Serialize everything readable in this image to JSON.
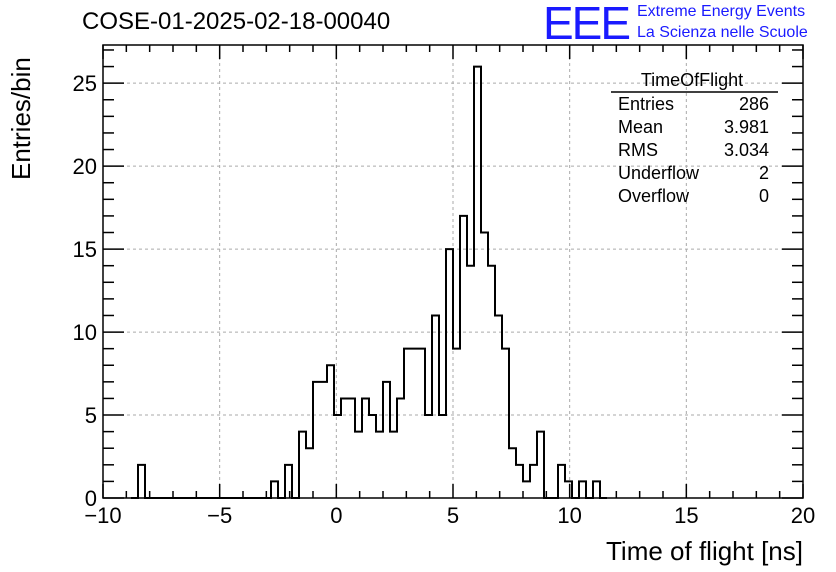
{
  "header": {
    "run_title": "COSE-01-2025-02-18-00040",
    "logo_text": "EEE",
    "logo_line1": "Extreme Energy Events",
    "logo_line2": "La Scienza nelle Scuole",
    "logo_color": "#1a1aff"
  },
  "stats_box": {
    "title": "TimeOfFlight",
    "rows": [
      {
        "label": "Entries",
        "value": "286"
      },
      {
        "label": "Mean",
        "value": "3.981"
      },
      {
        "label": "RMS",
        "value": "3.034"
      },
      {
        "label": "Underflow",
        "value": "2"
      },
      {
        "label": "Overflow",
        "value": "0"
      }
    ]
  },
  "chart_data": {
    "type": "bar",
    "histogram": true,
    "xlabel": "Time of flight [ns]",
    "ylabel": "Entries/bin",
    "xlim": [
      -10,
      20
    ],
    "ylim": [
      0,
      27.3
    ],
    "bin_width": 0.3,
    "x_ticks": [
      -10,
      -5,
      0,
      5,
      10,
      15,
      20
    ],
    "x_tick_labels": [
      "−10",
      "−5",
      "0",
      "5",
      "10",
      "15",
      "20"
    ],
    "y_ticks": [
      0,
      5,
      10,
      15,
      20,
      25
    ],
    "grid": true,
    "bins": [
      {
        "x0": -8.5,
        "y": 2
      },
      {
        "x0": -6.3,
        "y": 1
      },
      {
        "x0": -2.8,
        "y": 1
      },
      {
        "x0": -2.2,
        "y": 2
      },
      {
        "x0": -1.6,
        "y": 4
      },
      {
        "x0": -1.3,
        "y": 3
      },
      {
        "x0": -1.0,
        "y": 7
      },
      {
        "x0": -0.7,
        "y": 7
      },
      {
        "x0": -0.4,
        "y": 8
      },
      {
        "x0": -0.1,
        "y": 5
      },
      {
        "x0": 0.2,
        "y": 6
      },
      {
        "x0": 0.5,
        "y": 6
      },
      {
        "x0": 0.8,
        "y": 4
      },
      {
        "x0": 1.1,
        "y": 6
      },
      {
        "x0": 1.4,
        "y": 5
      },
      {
        "x0": 1.7,
        "y": 4
      },
      {
        "x0": 2.0,
        "y": 7
      },
      {
        "x0": 2.3,
        "y": 4
      },
      {
        "x0": 2.6,
        "y": 6
      },
      {
        "x0": 2.9,
        "y": 9
      },
      {
        "x0": 3.2,
        "y": 9
      },
      {
        "x0": 3.5,
        "y": 9
      },
      {
        "x0": 3.8,
        "y": 5
      },
      {
        "x0": 4.1,
        "y": 11
      },
      {
        "x0": 4.4,
        "y": 5
      },
      {
        "x0": 4.7,
        "y": 15
      },
      {
        "x0": 5.0,
        "y": 9
      },
      {
        "x0": 5.3,
        "y": 17
      },
      {
        "x0": 5.6,
        "y": 14
      },
      {
        "x0": 5.9,
        "y": 26
      },
      {
        "x0": 6.2,
        "y": 16
      },
      {
        "x0": 6.5,
        "y": 14
      },
      {
        "x0": 6.8,
        "y": 11
      },
      {
        "x0": 7.1,
        "y": 9
      },
      {
        "x0": 7.4,
        "y": 3
      },
      {
        "x0": 7.7,
        "y": 2
      },
      {
        "x0": 8.0,
        "y": 1
      },
      {
        "x0": 8.3,
        "y": 2
      },
      {
        "x0": 8.6,
        "y": 4
      },
      {
        "x0": 9.5,
        "y": 2
      },
      {
        "x0": 9.8,
        "y": 1
      },
      {
        "x0": 10.4,
        "y": 1
      },
      {
        "x0": 11.0,
        "y": 1
      }
    ]
  }
}
